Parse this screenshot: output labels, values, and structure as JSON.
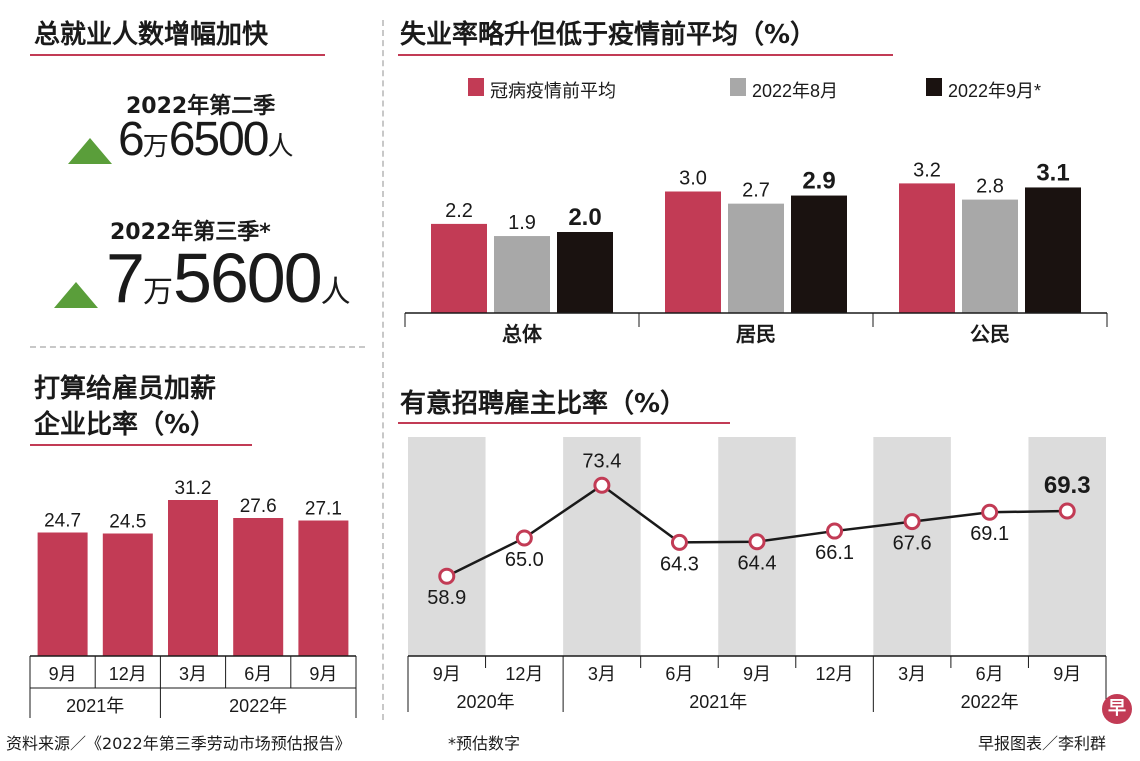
{
  "panel1": {
    "title": "总就业人数增幅加快",
    "items": [
      {
        "period": "2022年第二季",
        "value_a": "6",
        "wan": "万",
        "value_b": "6500",
        "unit": "人"
      },
      {
        "period": "2022年第三季*",
        "value_a": "7",
        "wan": "万",
        "value_b": "5600",
        "unit": "人"
      }
    ]
  },
  "panel2": {
    "title_line1": "打算给雇员加薪",
    "title_line2": "企业比率（%）"
  },
  "panel3": {
    "title": "失业率略升但低于疫情前平均（%）",
    "legend": [
      "冠病疫情前平均",
      "2022年8月",
      "2022年9月*"
    ]
  },
  "panel4": {
    "title": "有意招聘雇主比率（%）"
  },
  "colors": {
    "accent": "#c23b55",
    "grey_bar": "#a8a8a8",
    "black_bar": "#1a1210",
    "band": "#dcdcdc",
    "up_arrow": "#5a9e3a"
  },
  "chart_data": [
    {
      "type": "bar",
      "title": "打算给雇员加薪企业比率（%）",
      "categories": [
        "9月",
        "12月",
        "3月",
        "6月",
        "9月"
      ],
      "groups": [
        {
          "label": "2021年",
          "span": 2
        },
        {
          "label": "2022年",
          "span": 3
        }
      ],
      "values": [
        24.7,
        24.5,
        31.2,
        27.6,
        27.1
      ],
      "labels": [
        "24.7",
        "24.5",
        "31.2",
        "27.6",
        "27.1"
      ],
      "ylim": [
        0,
        40
      ]
    },
    {
      "type": "bar",
      "title": "失业率略升但低于疫情前平均（%）",
      "categories": [
        "总体",
        "居民",
        "公民"
      ],
      "series": [
        {
          "name": "冠病疫情前平均",
          "values": [
            2.2,
            3.0,
            3.2
          ],
          "labels": [
            "2.2",
            "3.0",
            "3.2"
          ],
          "color": "#c23b55"
        },
        {
          "name": "2022年8月",
          "values": [
            1.9,
            2.7,
            2.8
          ],
          "labels": [
            "1.9",
            "2.7",
            "2.8"
          ],
          "color": "#a8a8a8"
        },
        {
          "name": "2022年9月*",
          "values": [
            2.0,
            2.9,
            3.1
          ],
          "labels": [
            "2.0",
            "2.9",
            "3.1"
          ],
          "color": "#1a1210"
        }
      ],
      "ylim": [
        0,
        3.6
      ]
    },
    {
      "type": "line",
      "title": "有意招聘雇主比率（%）",
      "categories": [
        "9月",
        "12月",
        "3月",
        "6月",
        "9月",
        "12月",
        "3月",
        "6月",
        "9月"
      ],
      "groups": [
        {
          "label": "2020年",
          "span": 2
        },
        {
          "label": "2021年",
          "span": 4
        },
        {
          "label": "2022年",
          "span": 3
        }
      ],
      "values": [
        58.9,
        65.0,
        73.4,
        64.3,
        64.4,
        66.1,
        67.6,
        69.1,
        69.3
      ],
      "labels": [
        "58.9",
        "65.0",
        "73.4",
        "64.3",
        "64.4",
        "66.1",
        "67.6",
        "69.1",
        "69.3"
      ],
      "ylim": [
        50,
        80
      ]
    }
  ],
  "footer": {
    "source": "资料来源／《2022年第三季劳动市场预估报告》",
    "note": "*预估数字",
    "credit": "早报图表／李利群",
    "logo_char": "早"
  }
}
